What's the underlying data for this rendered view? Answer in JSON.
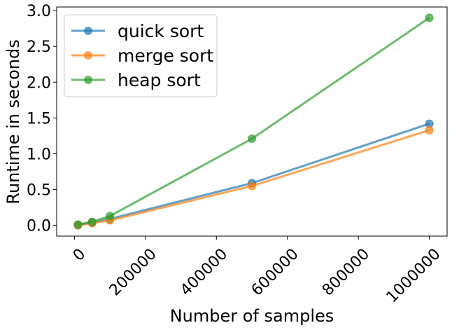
{
  "chart_data": {
    "type": "line",
    "title": "",
    "xlabel": "Number of samples",
    "ylabel": "Runtime in seconds",
    "xlim": [
      -50000,
      1050000
    ],
    "ylim": [
      -0.15,
      3.05
    ],
    "x": [
      10000,
      50000,
      100000,
      500000,
      1000000
    ],
    "xticks": [
      0,
      200000,
      400000,
      600000,
      800000,
      1000000
    ],
    "xtick_labels": [
      "0",
      "200000",
      "400000",
      "600000",
      "800000",
      "1000000"
    ],
    "yticks": [
      0.0,
      0.5,
      1.0,
      1.5,
      2.0,
      2.5,
      3.0
    ],
    "ytick_labels": [
      "0.0",
      "0.5",
      "1.0",
      "1.5",
      "2.0",
      "2.5",
      "3.0"
    ],
    "grid": false,
    "legend_position": "top-left",
    "series": [
      {
        "name": "quick sort",
        "color": "#1f77b4",
        "values": [
          0.01,
          0.04,
          0.09,
          0.59,
          1.42
        ]
      },
      {
        "name": "merge sort",
        "color": "#ff7f0e",
        "values": [
          0.0,
          0.03,
          0.07,
          0.55,
          1.33
        ]
      },
      {
        "name": "heap sort",
        "color": "#2ca02c",
        "values": [
          0.01,
          0.05,
          0.13,
          1.21,
          2.9
        ]
      }
    ]
  }
}
